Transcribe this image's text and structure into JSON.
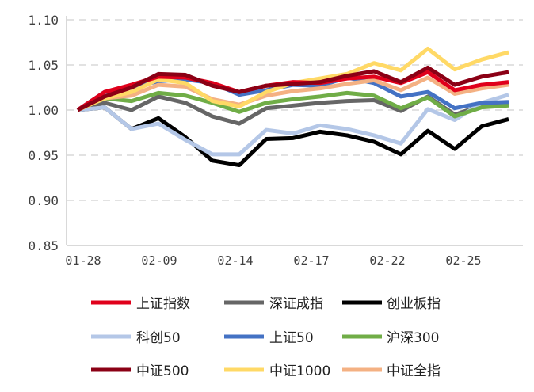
{
  "chart_data": {
    "type": "line",
    "title": "",
    "xlabel": "",
    "ylabel": "",
    "ylim": [
      0.85,
      1.1
    ],
    "y_ticks": [
      "1.10",
      "1.05",
      "1.00",
      "0.95",
      "0.90",
      "0.85"
    ],
    "y_tick_values": [
      1.1,
      1.05,
      1.0,
      0.95,
      0.9,
      0.85
    ],
    "x_tick_labels": [
      "01-28",
      "02-09",
      "02-14",
      "02-17",
      "02-22",
      "02-25"
    ],
    "num_points": 17,
    "grid": "horizontal dashed",
    "legend_position": "bottom",
    "series": [
      {
        "name": "上证指数",
        "color": "#e0001b",
        "values": [
          1.0,
          1.02,
          1.028,
          1.037,
          1.036,
          1.03,
          1.02,
          1.027,
          1.031,
          1.03,
          1.035,
          1.037,
          1.03,
          1.042,
          1.022,
          1.028,
          1.031
        ]
      },
      {
        "name": "深证成指",
        "color": "#666666",
        "values": [
          1.0,
          1.008,
          1.0,
          1.015,
          1.008,
          0.993,
          0.985,
          1.002,
          1.005,
          1.008,
          1.01,
          1.011,
          0.999,
          1.015,
          0.995,
          1.005,
          1.008
        ]
      },
      {
        "name": "创业板指",
        "color": "#000000",
        "values": [
          1.0,
          1.003,
          0.979,
          0.991,
          0.97,
          0.944,
          0.939,
          0.968,
          0.969,
          0.976,
          0.972,
          0.965,
          0.951,
          0.977,
          0.957,
          0.982,
          0.99
        ]
      },
      {
        "name": "科创50",
        "color": "#b4c7e7",
        "values": [
          1.0,
          1.003,
          0.979,
          0.985,
          0.967,
          0.951,
          0.951,
          0.978,
          0.974,
          0.983,
          0.979,
          0.972,
          0.963,
          1.001,
          0.989,
          1.008,
          1.017
        ]
      },
      {
        "name": "上证50",
        "color": "#4472c4",
        "values": [
          1.0,
          1.02,
          1.025,
          1.032,
          1.034,
          1.03,
          1.017,
          1.022,
          1.028,
          1.027,
          1.036,
          1.03,
          1.015,
          1.02,
          1.002,
          1.008,
          1.009
        ]
      },
      {
        "name": "沪深300",
        "color": "#70ad47",
        "values": [
          1.0,
          1.013,
          1.01,
          1.019,
          1.016,
          1.008,
          0.998,
          1.008,
          1.012,
          1.015,
          1.019,
          1.016,
          1.002,
          1.014,
          0.993,
          1.003,
          1.005
        ]
      },
      {
        "name": "中证500",
        "color": "#8b0015",
        "values": [
          1.0,
          1.015,
          1.025,
          1.04,
          1.039,
          1.027,
          1.02,
          1.027,
          1.029,
          1.031,
          1.038,
          1.043,
          1.031,
          1.047,
          1.028,
          1.037,
          1.042
        ]
      },
      {
        "name": "中证1000",
        "color": "#ffd966",
        "values": [
          1.0,
          1.013,
          1.02,
          1.034,
          1.03,
          1.01,
          1.004,
          1.02,
          1.03,
          1.035,
          1.04,
          1.052,
          1.044,
          1.068,
          1.045,
          1.056,
          1.064
        ]
      },
      {
        "name": "中证全指",
        "color": "#f4b183",
        "values": [
          1.0,
          1.013,
          1.016,
          1.028,
          1.026,
          1.012,
          1.006,
          1.016,
          1.021,
          1.024,
          1.029,
          1.033,
          1.022,
          1.036,
          1.018,
          1.024,
          1.028
        ]
      }
    ]
  }
}
